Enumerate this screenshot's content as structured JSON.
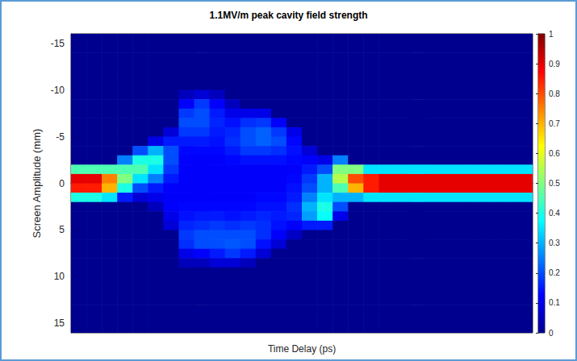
{
  "chart_data": {
    "type": "heatmap",
    "title": "1.1MV/m peak cavity field strength",
    "xlabel": "Time Delay (ps)",
    "ylabel": "Screen Amplitude (mm)",
    "categories": [
      null,
      null,
      null,
      null,
      null,
      null,
      null,
      null,
      null,
      null,
      null,
      null,
      null,
      null,
      null,
      null,
      null,
      null,
      null,
      null,
      null,
      null,
      null,
      null,
      null,
      null,
      null,
      null,
      null,
      null
    ],
    "y_bins": [
      -16,
      -15,
      -14,
      -13,
      -12,
      -11,
      -10,
      -9,
      -8,
      -7,
      -6,
      -5,
      -4,
      -3,
      -2,
      -1,
      0,
      1,
      2,
      3,
      4,
      5,
      6,
      7,
      8,
      9,
      10,
      11,
      12,
      13,
      14,
      15,
      16
    ],
    "ylim": [
      -16,
      16
    ],
    "yticks": [
      -15,
      -10,
      -5,
      0,
      5,
      10,
      15
    ],
    "tick_labels": "y",
    "grid": false,
    "colorbar": {
      "range": [
        0,
        1
      ],
      "ticks": [
        0,
        0.1,
        0.2,
        0.3,
        0.4,
        0.5,
        0.6,
        0.7,
        0.8,
        0.9,
        1
      ]
    },
    "cells": [
      [
        0,
        0,
        0,
        0,
        0,
        0,
        0,
        0,
        0,
        0,
        0,
        0,
        0,
        0,
        0,
        0,
        0,
        0,
        0,
        0,
        0,
        0,
        0,
        0,
        0,
        0,
        0,
        0,
        0,
        0
      ],
      [
        0,
        0,
        0,
        0,
        0,
        0,
        0,
        0,
        0,
        0,
        0,
        0,
        0,
        0,
        0,
        0,
        0,
        0,
        0,
        0,
        0,
        0,
        0,
        0,
        0,
        0,
        0,
        0,
        0,
        0
      ],
      [
        0,
        0,
        0,
        0,
        0,
        0,
        0,
        0,
        0,
        0,
        0,
        0,
        0,
        0,
        0,
        0,
        0,
        0,
        0,
        0,
        0,
        0,
        0,
        0,
        0,
        0,
        0,
        0,
        0,
        0
      ],
      [
        0,
        0,
        0,
        0,
        0,
        0,
        0,
        0,
        0,
        0,
        0,
        0,
        0,
        0,
        0,
        0,
        0,
        0,
        0,
        0,
        0,
        0,
        0,
        0,
        0,
        0,
        0,
        0,
        0,
        0
      ],
      [
        0,
        0,
        0,
        0,
        0,
        0,
        0,
        0,
        0,
        0,
        0,
        0,
        0,
        0,
        0,
        0,
        0,
        0,
        0,
        0,
        0,
        0,
        0,
        0,
        0,
        0,
        0,
        0,
        0,
        0
      ],
      [
        0,
        0,
        0,
        0,
        0,
        0,
        0,
        0,
        0,
        0,
        0,
        0,
        0,
        0,
        0,
        0,
        0,
        0,
        0,
        0,
        0,
        0,
        0,
        0,
        0,
        0,
        0,
        0,
        0,
        0
      ],
      [
        0,
        0,
        0,
        0,
        0,
        0,
        0,
        0.05,
        0.08,
        0.05,
        0,
        0,
        0,
        0,
        0,
        0,
        0,
        0,
        0,
        0,
        0,
        0,
        0,
        0,
        0,
        0,
        0,
        0,
        0,
        0
      ],
      [
        0,
        0,
        0,
        0,
        0,
        0,
        0,
        0.12,
        0.18,
        0.12,
        0.05,
        0,
        0,
        0,
        0,
        0,
        0,
        0,
        0,
        0,
        0,
        0,
        0,
        0,
        0,
        0,
        0,
        0,
        0,
        0
      ],
      [
        0,
        0,
        0,
        0,
        0,
        0,
        0,
        0.18,
        0.2,
        0.15,
        0.1,
        0.1,
        0.1,
        0,
        0,
        0,
        0,
        0,
        0,
        0,
        0,
        0,
        0,
        0,
        0,
        0,
        0,
        0,
        0,
        0
      ],
      [
        0,
        0,
        0,
        0,
        0,
        0,
        0,
        0.2,
        0.2,
        0.16,
        0.14,
        0.17,
        0.18,
        0.12,
        0,
        0,
        0,
        0,
        0,
        0,
        0,
        0,
        0,
        0,
        0,
        0,
        0,
        0,
        0,
        0
      ],
      [
        0,
        0,
        0,
        0,
        0,
        0,
        0.08,
        0.18,
        0.18,
        0.15,
        0.16,
        0.2,
        0.22,
        0.18,
        0.1,
        0,
        0,
        0,
        0,
        0,
        0,
        0,
        0,
        0,
        0,
        0,
        0,
        0,
        0,
        0
      ],
      [
        0,
        0,
        0,
        0,
        0,
        0.1,
        0.15,
        0.15,
        0.15,
        0.14,
        0.17,
        0.2,
        0.22,
        0.2,
        0.13,
        0,
        0,
        0,
        0,
        0,
        0,
        0,
        0,
        0,
        0,
        0,
        0,
        0,
        0,
        0
      ],
      [
        0,
        0,
        0,
        0,
        0.2,
        0.3,
        0.2,
        0.13,
        0.13,
        0.13,
        0.15,
        0.18,
        0.18,
        0.17,
        0.14,
        0.08,
        0,
        0,
        0,
        0,
        0,
        0,
        0,
        0,
        0,
        0,
        0,
        0,
        0,
        0
      ],
      [
        0,
        0,
        0,
        0.25,
        0.4,
        0.4,
        0.2,
        0.12,
        0.12,
        0.12,
        0.13,
        0.14,
        0.14,
        0.14,
        0.13,
        0.12,
        0.1,
        0.25,
        0,
        0,
        0,
        0,
        0,
        0,
        0,
        0,
        0,
        0,
        0,
        0
      ],
      [
        0.45,
        0.45,
        0.45,
        0.45,
        0.45,
        0.35,
        0.18,
        0.12,
        0.12,
        0.12,
        0.12,
        0.12,
        0.12,
        0.12,
        0.12,
        0.15,
        0.2,
        0.5,
        0.5,
        0.35,
        0.35,
        0.35,
        0.35,
        0.35,
        0.35,
        0.35,
        0.35,
        0.35,
        0.35,
        0.35
      ],
      [
        0.9,
        0.9,
        0.75,
        0.5,
        0.35,
        0.25,
        0.15,
        0.12,
        0.12,
        0.12,
        0.12,
        0.12,
        0.12,
        0.12,
        0.13,
        0.18,
        0.3,
        0.55,
        0.8,
        0.85,
        0.9,
        0.9,
        0.9,
        0.9,
        0.9,
        0.9,
        0.9,
        0.9,
        0.9,
        0.9
      ],
      [
        0.85,
        0.85,
        0.7,
        0.4,
        0.2,
        0.15,
        0.12,
        0.12,
        0.12,
        0.12,
        0.12,
        0.12,
        0.12,
        0.12,
        0.14,
        0.2,
        0.3,
        0.45,
        0.7,
        0.85,
        0.9,
        0.9,
        0.9,
        0.9,
        0.9,
        0.9,
        0.9,
        0.9,
        0.9,
        0.9
      ],
      [
        0.4,
        0.4,
        0.35,
        0.15,
        0.08,
        0.1,
        0.12,
        0.12,
        0.12,
        0.12,
        0.12,
        0.12,
        0.13,
        0.13,
        0.15,
        0.25,
        0.35,
        0.3,
        0.3,
        0.35,
        0.35,
        0.35,
        0.35,
        0.35,
        0.35,
        0.35,
        0.35,
        0.35,
        0.35,
        0.35
      ],
      [
        0,
        0,
        0,
        0,
        0,
        0.05,
        0.12,
        0.13,
        0.13,
        0.13,
        0.13,
        0.13,
        0.14,
        0.14,
        0.17,
        0.3,
        0.4,
        0.2,
        0,
        0,
        0,
        0,
        0,
        0,
        0,
        0,
        0,
        0,
        0,
        0
      ],
      [
        0,
        0,
        0,
        0,
        0,
        0,
        0.1,
        0.14,
        0.15,
        0.15,
        0.14,
        0.15,
        0.16,
        0.15,
        0.16,
        0.28,
        0.38,
        0.1,
        0,
        0,
        0,
        0,
        0,
        0,
        0,
        0,
        0,
        0,
        0,
        0
      ],
      [
        0,
        0,
        0,
        0,
        0,
        0,
        0.08,
        0.16,
        0.17,
        0.18,
        0.17,
        0.18,
        0.17,
        0.14,
        0.12,
        0.15,
        0.15,
        0,
        0,
        0,
        0,
        0,
        0,
        0,
        0,
        0,
        0,
        0,
        0,
        0
      ],
      [
        0,
        0,
        0,
        0,
        0,
        0,
        0,
        0.18,
        0.2,
        0.2,
        0.2,
        0.2,
        0.17,
        0.12,
        0.06,
        0,
        0,
        0,
        0,
        0,
        0,
        0,
        0,
        0,
        0,
        0,
        0,
        0,
        0,
        0
      ],
      [
        0,
        0,
        0,
        0,
        0,
        0,
        0,
        0.17,
        0.2,
        0.2,
        0.21,
        0.2,
        0.14,
        0.08,
        0,
        0,
        0,
        0,
        0,
        0,
        0,
        0,
        0,
        0,
        0,
        0,
        0,
        0,
        0,
        0
      ],
      [
        0,
        0,
        0,
        0,
        0,
        0,
        0,
        0.1,
        0.12,
        0.15,
        0.18,
        0.15,
        0.08,
        0,
        0,
        0,
        0,
        0,
        0,
        0,
        0,
        0,
        0,
        0,
        0,
        0,
        0,
        0,
        0,
        0
      ],
      [
        0,
        0,
        0,
        0,
        0,
        0,
        0,
        0.05,
        0.05,
        0.08,
        0.08,
        0.05,
        0,
        0,
        0,
        0,
        0,
        0,
        0,
        0,
        0,
        0,
        0,
        0,
        0,
        0,
        0,
        0,
        0,
        0
      ],
      [
        0,
        0,
        0,
        0,
        0,
        0,
        0,
        0,
        0,
        0,
        0,
        0,
        0,
        0,
        0,
        0,
        0,
        0,
        0,
        0,
        0,
        0,
        0,
        0,
        0,
        0,
        0,
        0,
        0,
        0
      ],
      [
        0,
        0,
        0,
        0,
        0,
        0,
        0,
        0,
        0,
        0,
        0,
        0,
        0,
        0,
        0,
        0,
        0,
        0,
        0,
        0,
        0,
        0,
        0,
        0,
        0,
        0,
        0,
        0,
        0,
        0
      ],
      [
        0,
        0,
        0,
        0,
        0,
        0,
        0,
        0,
        0,
        0,
        0,
        0,
        0,
        0,
        0,
        0,
        0,
        0,
        0,
        0,
        0,
        0,
        0,
        0,
        0,
        0,
        0,
        0,
        0,
        0
      ],
      [
        0,
        0,
        0,
        0,
        0,
        0,
        0,
        0,
        0,
        0,
        0,
        0,
        0,
        0,
        0,
        0,
        0,
        0,
        0,
        0,
        0,
        0,
        0,
        0,
        0,
        0,
        0,
        0,
        0,
        0
      ],
      [
        0,
        0,
        0,
        0,
        0,
        0,
        0,
        0,
        0,
        0,
        0,
        0,
        0,
        0,
        0,
        0,
        0,
        0,
        0,
        0,
        0,
        0,
        0,
        0,
        0,
        0,
        0,
        0,
        0,
        0
      ],
      [
        0,
        0,
        0,
        0,
        0,
        0,
        0,
        0,
        0,
        0,
        0,
        0,
        0,
        0,
        0,
        0,
        0,
        0,
        0,
        0,
        0,
        0,
        0,
        0,
        0,
        0,
        0,
        0,
        0,
        0
      ],
      [
        0,
        0,
        0,
        0,
        0,
        0,
        0,
        0,
        0,
        0,
        0,
        0,
        0,
        0,
        0,
        0,
        0,
        0,
        0,
        0,
        0,
        0,
        0,
        0,
        0,
        0,
        0,
        0,
        0,
        0
      ]
    ]
  }
}
